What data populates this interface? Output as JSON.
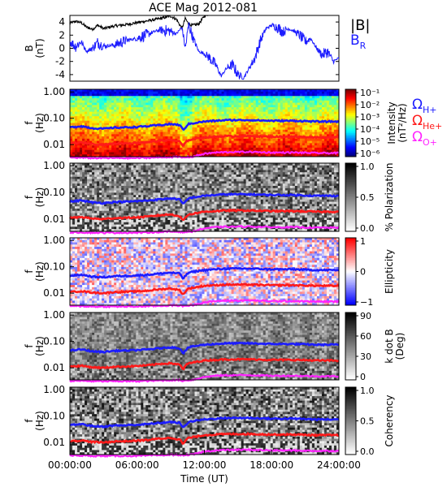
{
  "title": "ACE Mag 2012-081",
  "colors": {
    "blue": "#1c1cff",
    "red": "#ff1a1a",
    "magenta": "#ff22ff",
    "black": "#000000"
  },
  "chart_data": [
    {
      "type": "line",
      "id": "mag",
      "title": "ACE Mag 2012-081",
      "ylabel": [
        "B",
        "(nT)"
      ],
      "ylim": [
        -5,
        5
      ],
      "yticks": [
        4,
        2,
        0,
        -2,
        -4
      ],
      "xlim_hours": [
        0,
        24
      ],
      "series": [
        {
          "name": "|B|",
          "color": "#000000",
          "x": [
            0,
            0.5,
            1,
            1.5,
            2,
            2.5,
            3,
            4,
            5,
            6,
            7,
            8,
            9,
            9.5,
            10,
            10.3,
            10.6,
            11,
            11.5,
            12,
            12.5,
            13,
            14,
            15,
            16,
            17,
            18,
            19,
            20,
            21,
            22,
            23,
            24
          ],
          "values": [
            3.8,
            4.1,
            3.9,
            3.2,
            2.9,
            3.5,
            3.0,
            3.4,
            3.6,
            3.9,
            4.2,
            4.5,
            4.9,
            4.4,
            3.0,
            4.6,
            3.6,
            3.5,
            3.7,
            4.9,
            5.3,
            5.6,
            5.8,
            5.8,
            5.7,
            5.6,
            5.6,
            5.7,
            5.6,
            5.7,
            5.6,
            5.6,
            5.6
          ]
        },
        {
          "name": "B_R",
          "color": "#1c1cff",
          "x": [
            0,
            0.5,
            1,
            1.5,
            2,
            2.5,
            3,
            4,
            5,
            6,
            7,
            8,
            9,
            9.5,
            10,
            10.3,
            10.6,
            11,
            11.5,
            12,
            12.5,
            13,
            13.5,
            14,
            14.5,
            15,
            15.5,
            16,
            16.5,
            17,
            17.5,
            18,
            18.5,
            19,
            19.5,
            20,
            20.5,
            21,
            21.5,
            22,
            22.5,
            23,
            23.5,
            24
          ],
          "values": [
            1.0,
            0.3,
            1.0,
            -0.5,
            0.0,
            0.9,
            0.3,
            0.5,
            1.2,
            1.5,
            2.2,
            2.8,
            2.6,
            2.2,
            3.2,
            0.0,
            3.6,
            1.5,
            -0.5,
            -0.8,
            -1.5,
            -2.5,
            -4.2,
            -3.0,
            -2.5,
            -4.0,
            -4.5,
            -3.0,
            -1.5,
            1.2,
            3.0,
            3.5,
            3.2,
            2.5,
            3.0,
            2.6,
            2.0,
            1.0,
            1.5,
            0.0,
            -1.0,
            -0.5,
            -2.0,
            -1.5
          ]
        }
      ],
      "legend": [
        {
          "label": "|B|",
          "color": "#000000"
        },
        {
          "label": "B",
          "sub": "R",
          "color": "#1c1cff"
        }
      ]
    },
    {
      "type": "heatmap",
      "id": "intensity",
      "ylabel": [
        "f",
        "(Hz)"
      ],
      "ylim": [
        0.004,
        1.0
      ],
      "yscale": "log",
      "yticks": [
        "1.00",
        "0.10",
        "0.01"
      ],
      "colorbar": {
        "label": [
          "Intensity",
          "(nT²/Hz)"
        ],
        "ticks": [
          "10⁻¹",
          "10⁻²",
          "10⁻³",
          "10⁻⁴",
          "10⁻⁵",
          "10⁻⁶"
        ],
        "scale": "log",
        "range": [
          1e-06,
          0.1
        ]
      },
      "legend": [
        {
          "label": "Ω",
          "sub": "H+",
          "color": "#1c1cff"
        },
        {
          "label": "Ω",
          "sub": "He+",
          "color": "#ff1a1a"
        },
        {
          "label": "Ω",
          "sub": "O+",
          "color": "#ff22ff"
        }
      ]
    },
    {
      "type": "heatmap",
      "id": "polarization",
      "ylabel": [
        "f",
        "(Hz)"
      ],
      "yscale": "log",
      "yticks": [
        "1.00",
        "0.10",
        "0.01"
      ],
      "colorbar": {
        "label": [
          "% Polarization"
        ],
        "ticks": [
          "1.0",
          "0.5",
          "0.0"
        ],
        "range": [
          0,
          1
        ]
      }
    },
    {
      "type": "heatmap",
      "id": "ellipticity",
      "ylabel": [
        "f",
        "(Hz)"
      ],
      "yscale": "log",
      "yticks": [
        "1.00",
        "0.10",
        "0.01"
      ],
      "colorbar": {
        "label": [
          "Ellipticity"
        ],
        "ticks": [
          "1",
          "0",
          "−1"
        ],
        "range": [
          -1,
          1
        ]
      }
    },
    {
      "type": "heatmap",
      "id": "kdotb",
      "ylabel": [
        "f",
        "(Hz)"
      ],
      "yscale": "log",
      "yticks": [
        "1.00",
        "0.10",
        "0.01"
      ],
      "colorbar": {
        "label": [
          "k dot B",
          "(Deg)"
        ],
        "ticks": [
          "90",
          "60",
          "30",
          "0"
        ],
        "range": [
          0,
          90
        ]
      }
    },
    {
      "type": "heatmap",
      "id": "coherency",
      "ylabel": [
        "f",
        "(Hz)"
      ],
      "yscale": "log",
      "yticks": [
        "1.00",
        "0.10",
        "0.01"
      ],
      "colorbar": {
        "label": [
          "Coherency"
        ],
        "ticks": [
          "1.0",
          "0.5",
          "0.0"
        ],
        "range": [
          0,
          1
        ]
      }
    }
  ],
  "gyrofrequency_lines": {
    "x_hours": [
      0,
      1,
      2,
      3,
      4,
      5,
      6,
      7,
      8,
      9,
      9.8,
      10.1,
      10.4,
      10.6,
      11,
      12,
      13,
      14,
      16,
      18,
      20,
      22,
      24
    ],
    "H+": [
      0.045,
      0.05,
      0.042,
      0.04,
      0.044,
      0.045,
      0.047,
      0.05,
      0.055,
      0.06,
      0.055,
      0.035,
      0.05,
      0.06,
      0.065,
      0.075,
      0.08,
      0.085,
      0.085,
      0.08,
      0.08,
      0.075,
      0.075
    ],
    "He+": [
      0.011,
      0.012,
      0.0105,
      0.01,
      0.011,
      0.0112,
      0.0117,
      0.0125,
      0.014,
      0.015,
      0.013,
      0.0085,
      0.013,
      0.015,
      0.016,
      0.019,
      0.02,
      0.021,
      0.021,
      0.02,
      0.02,
      0.019,
      0.019
    ],
    "O+": [
      0.0032,
      0.0032,
      0.0031,
      0.0031,
      0.0031,
      0.0031,
      0.0031,
      0.0032,
      0.0033,
      0.0034,
      0.0034,
      0.0032,
      0.0034,
      0.0034,
      0.0035,
      0.0045,
      0.005,
      0.0052,
      0.0053,
      0.005,
      0.005,
      0.0048,
      0.0048
    ]
  },
  "xaxis": {
    "label": "Time (UT)",
    "ticks": [
      "00:00:00",
      "06:00:00",
      "12:00:00",
      "18:00:00",
      "24:00:00"
    ]
  }
}
